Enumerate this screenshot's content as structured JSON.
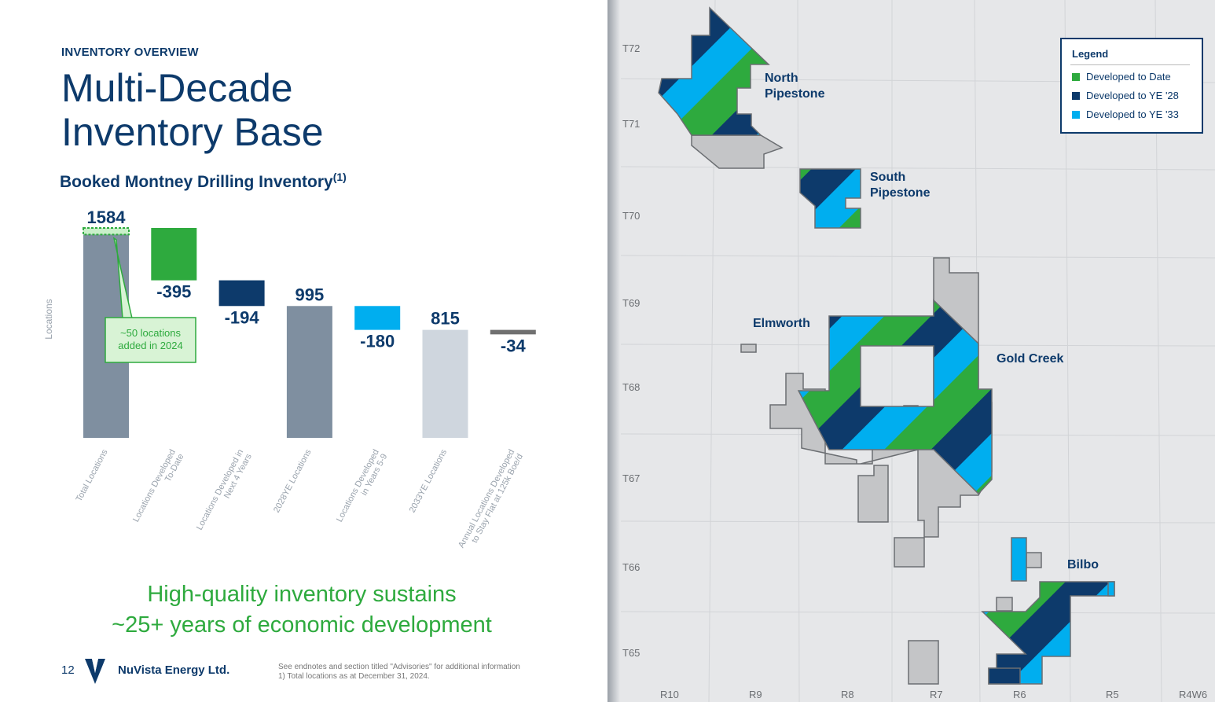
{
  "header": {
    "eyebrow": "INVENTORY OVERVIEW",
    "title_line1": "Multi-Decade",
    "title_line2": "Inventory Base",
    "subtitle": "Booked Montney Drilling Inventory",
    "subtitle_sup": "(1)"
  },
  "chart_data": {
    "type": "bar",
    "subtype": "waterfall",
    "title": "Booked Montney Drilling Inventory",
    "ylabel": "Locations",
    "xlabel": "",
    "ylim": [
      0,
      1700
    ],
    "categories": [
      "Total Locations",
      "Locations Developed To-Date",
      "Locations Developed in Next 4 Years",
      "2028YE Locations",
      "Locations Developed in Years 5-9",
      "2033YE Locations",
      "Annual Locations Developed to Stay Flat at 125k Boe/d"
    ],
    "tick_labels": [
      [
        "Total Locations"
      ],
      [
        "Locations Developed",
        "To-Date"
      ],
      [
        "Locations Developed in",
        "Next 4 Years"
      ],
      [
        "2028YE Locations"
      ],
      [
        "Locations Developed",
        "in Years 5-9"
      ],
      [
        "2033YE Locations"
      ],
      [
        "Annual Locations Developed",
        "to Stay Flat at 125k Boe/d"
      ]
    ],
    "values": [
      1584,
      -395,
      -194,
      995,
      -180,
      815,
      -34
    ],
    "value_labels": [
      "1584",
      "-395",
      "-194",
      "995",
      "-180",
      "815",
      "-34"
    ],
    "kinds": [
      "total",
      "delta",
      "delta",
      "total",
      "delta",
      "total",
      "delta"
    ],
    "colors": [
      "#7f8fa0",
      "#2eaa3e",
      "#0d3a6b",
      "#7f8fa0",
      "#00aeef",
      "#cfd6de",
      "#707070"
    ],
    "added_2024": 50,
    "annotation": [
      "~50 locations",
      "added in 2024"
    ],
    "grid": false
  },
  "tagline": {
    "line1": "High-quality inventory sustains",
    "line2": "~25+ years of economic development"
  },
  "footer": {
    "page_number": "12",
    "company": "NuVista Energy Ltd.",
    "note1": "See endnotes and section titled \"Advisories\" for additional information",
    "note2": "1)       Total locations as at December 31, 2024."
  },
  "map": {
    "legend_title": "Legend",
    "legend": [
      {
        "label": "Developed to Date",
        "color": "#2eaa3e"
      },
      {
        "label": "Developed to YE '28",
        "color": "#0d3a6b"
      },
      {
        "label": "Developed to YE '33",
        "color": "#00aeef"
      }
    ],
    "regions": [
      {
        "line1": "North",
        "line2": "Pipestone"
      },
      {
        "line1": "South",
        "line2": "Pipestone"
      },
      {
        "line1": "Elmworth",
        "line2": ""
      },
      {
        "line1": "Gold Creek",
        "line2": ""
      },
      {
        "line1": "Bilbo",
        "line2": ""
      }
    ],
    "townships": [
      "T72",
      "T71",
      "T70",
      "T69",
      "T68",
      "T67",
      "T66",
      "T65"
    ],
    "ranges": [
      "R10",
      "R9",
      "R8",
      "R7",
      "R6",
      "R5",
      "R4W6"
    ],
    "undeveloped_color": "#c4c5c7",
    "land_color": "#e6e7e9"
  }
}
